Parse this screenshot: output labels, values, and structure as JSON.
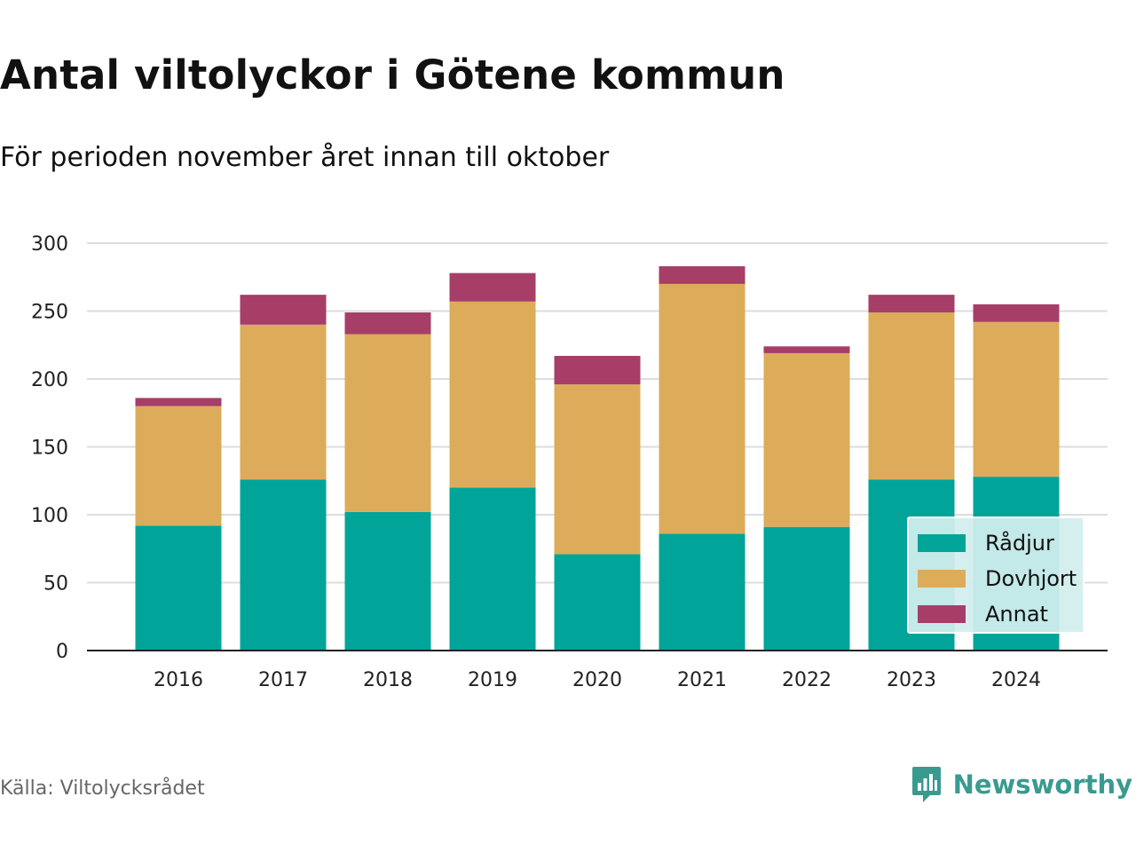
{
  "header": {
    "title": "Antal viltolyckor i Götene kommun",
    "subtitle": "För perioden november året innan till oktober"
  },
  "footer": {
    "source": "Källa: Viltolycksrådet",
    "brand": "Newsworthy",
    "brand_icon": "bar-chart-speech-bubble-icon"
  },
  "colors": {
    "radjur": "#00a499",
    "dovhjort": "#dcac5a",
    "annat": "#a63e68",
    "grid": "#dddddd",
    "axis": "#222222",
    "brand": "#3a9a8f"
  },
  "chart_data": {
    "type": "bar",
    "stacked": true,
    "categories": [
      "2016",
      "2017",
      "2018",
      "2019",
      "2020",
      "2021",
      "2022",
      "2023",
      "2024"
    ],
    "series": [
      {
        "name": "Rådjur",
        "values": [
          92,
          126,
          102,
          120,
          71,
          86,
          91,
          126,
          128
        ]
      },
      {
        "name": "Dovhjort",
        "values": [
          88,
          114,
          131,
          137,
          125,
          184,
          128,
          123,
          114
        ]
      },
      {
        "name": "Annat",
        "values": [
          6,
          22,
          16,
          21,
          21,
          13,
          5,
          13,
          13
        ]
      }
    ],
    "yticks": [
      0,
      50,
      100,
      150,
      200,
      250,
      300
    ],
    "ylim": [
      0,
      300
    ],
    "grid": true,
    "legend_position": "bottom-right"
  }
}
